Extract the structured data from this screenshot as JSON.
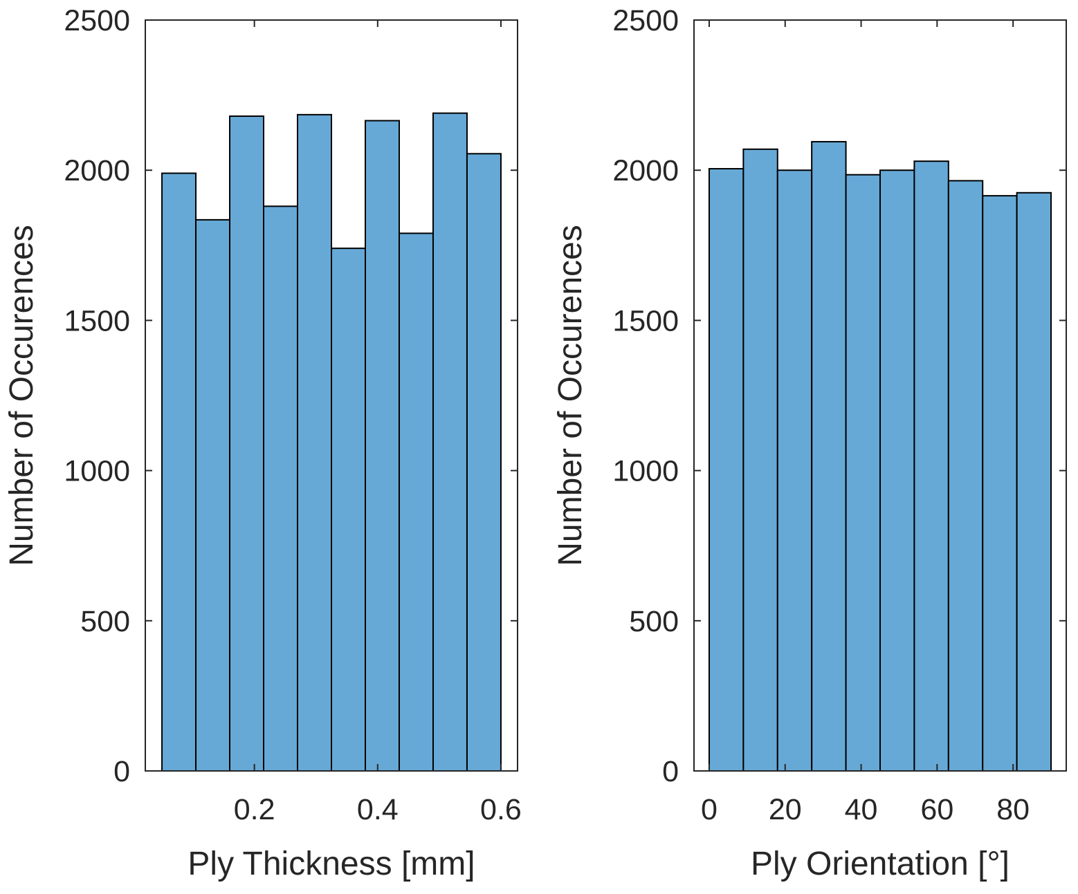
{
  "chart_data": [
    {
      "type": "bar",
      "subtype": "histogram",
      "bin_edges": [
        0.05,
        0.105,
        0.16,
        0.215,
        0.27,
        0.325,
        0.38,
        0.435,
        0.49,
        0.545,
        0.6
      ],
      "values": [
        1990,
        1835,
        2180,
        1880,
        2185,
        1740,
        2165,
        1790,
        2190,
        2055
      ],
      "xlabel": "Ply Thickness [mm]",
      "ylabel": "Number of Occurences",
      "xlim": [
        0.023,
        0.627
      ],
      "ylim": [
        0,
        2500
      ],
      "xticks": [
        0.2,
        0.4,
        0.6
      ],
      "xtick_labels": [
        "0.2",
        "0.4",
        "0.6"
      ],
      "yticks": [
        0,
        500,
        1000,
        1500,
        2000,
        2500
      ],
      "ytick_labels": [
        "0",
        "500",
        "1000",
        "1500",
        "2000",
        "2500"
      ],
      "bar_color": "#67a9d6"
    },
    {
      "type": "bar",
      "subtype": "histogram",
      "bin_edges": [
        0,
        9,
        18,
        27,
        36,
        45,
        54,
        63,
        72,
        81,
        90
      ],
      "values": [
        2005,
        2070,
        2000,
        2095,
        1985,
        2000,
        2030,
        1965,
        1915,
        1925
      ],
      "xlabel": "Ply Orientation [°]",
      "ylabel": "Number of Occurences",
      "xlim": [
        -4,
        94
      ],
      "ylim": [
        0,
        2500
      ],
      "xticks": [
        0,
        20,
        40,
        60,
        80
      ],
      "xtick_labels": [
        "0",
        "20",
        "40",
        "60",
        "80"
      ],
      "yticks": [
        0,
        500,
        1000,
        1500,
        2000,
        2500
      ],
      "ytick_labels": [
        "0",
        "500",
        "1000",
        "1500",
        "2000",
        "2500"
      ],
      "bar_color": "#67a9d6"
    }
  ]
}
